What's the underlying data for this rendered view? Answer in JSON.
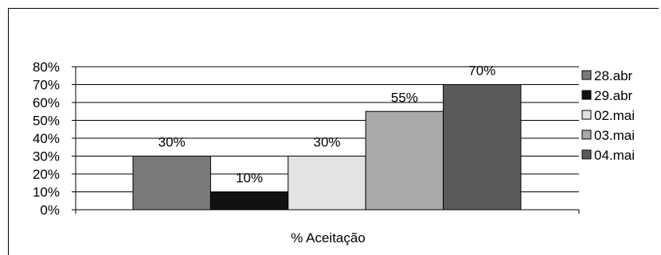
{
  "chart_data": {
    "type": "bar",
    "title": "",
    "xlabel": "% Aceitação",
    "ylabel": "",
    "categories": [
      "% Aceitação"
    ],
    "ylim": [
      0,
      80
    ],
    "yticks": [
      "0%",
      "10%",
      "20%",
      "30%",
      "40%",
      "50%",
      "60%",
      "70%",
      "80%"
    ],
    "grid": true,
    "legend_position": "right",
    "series": [
      {
        "name": "28.abr",
        "values": [
          30
        ],
        "data_label": "30%",
        "color": "#7a7a7a"
      },
      {
        "name": "29.abr",
        "values": [
          10
        ],
        "data_label": "10%",
        "color": "#111111"
      },
      {
        "name": "02.mai",
        "values": [
          30
        ],
        "data_label": "30%",
        "color": "#e3e3e3"
      },
      {
        "name": "03.mai",
        "values": [
          55
        ],
        "data_label": "55%",
        "color": "#a9a9a9"
      },
      {
        "name": "04.mai",
        "values": [
          70
        ],
        "data_label": "70%",
        "color": "#5a5a5a"
      }
    ]
  }
}
